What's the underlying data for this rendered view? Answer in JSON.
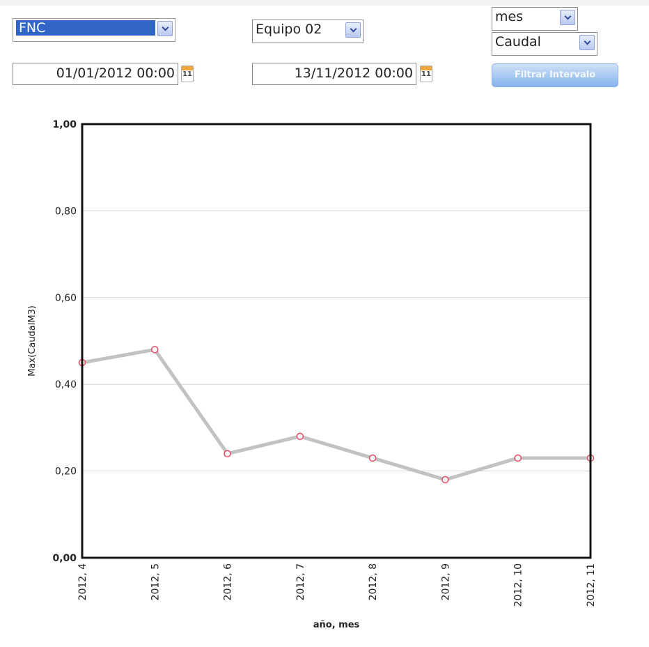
{
  "controls": {
    "group_select": "FNC",
    "equipment_select": "Equipo 02",
    "period_select": "mes",
    "variable_select": "Caudal",
    "date_from": "01/01/2012 00:00",
    "date_to": "13/11/2012 00:00",
    "calendar_day": "11",
    "filter_button": "Filtrar Intervalo"
  },
  "colors": {
    "selected_option": "#3166c8",
    "line": "#c2c2c2",
    "marker": "#e8475f",
    "button": "#86b3ec"
  },
  "chart_data": {
    "type": "line",
    "categories": [
      "2012, 4",
      "2012, 5",
      "2012, 6",
      "2012, 7",
      "2012, 8",
      "2012, 9",
      "2012, 10",
      "2012, 11"
    ],
    "series": [
      {
        "values": [
          0.45,
          0.48,
          0.24,
          0.28,
          0.23,
          0.18,
          0.23,
          0.23
        ]
      }
    ],
    "ylim": [
      0,
      1
    ],
    "yticks": [
      "0,00",
      "0,20",
      "0,40",
      "0,60",
      "0,80",
      "1,00"
    ],
    "xlabel": "año, mes",
    "ylabel": "Max(CaudalM3)",
    "grid": true,
    "legend": "none"
  }
}
